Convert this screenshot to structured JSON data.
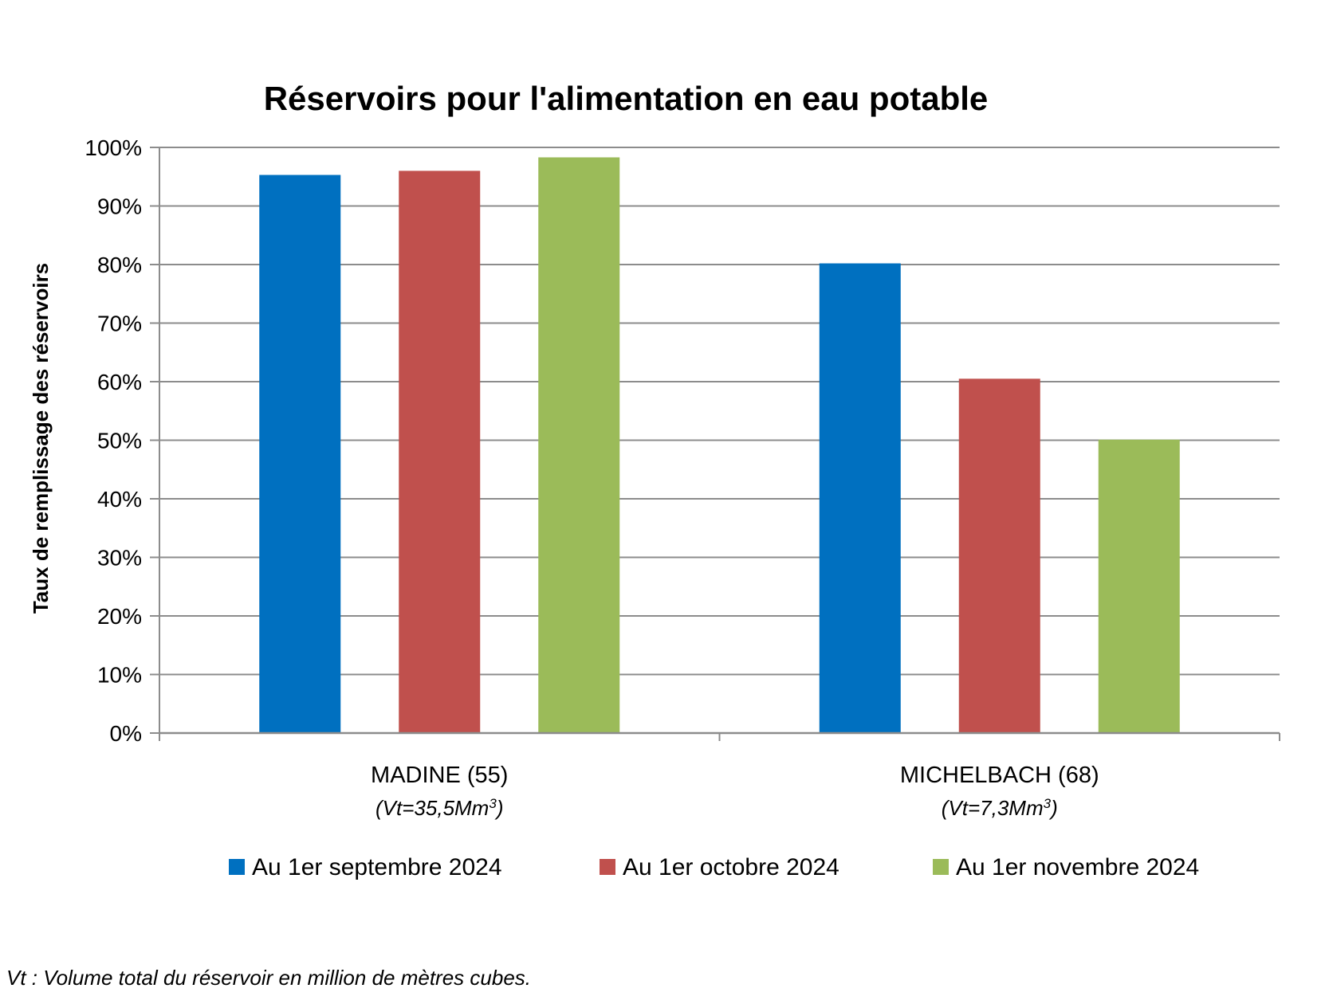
{
  "chart_data": {
    "type": "bar",
    "title": "Réservoirs pour l'alimentation en eau potable",
    "ylabel": "Taux de remplissage des réservoirs",
    "xlabel": "",
    "ylim": [
      0,
      100
    ],
    "yticks": [
      "0%",
      "10%",
      "20%",
      "30%",
      "40%",
      "50%",
      "60%",
      "70%",
      "80%",
      "90%",
      "100%"
    ],
    "categories": [
      {
        "name": "MADINE (55)",
        "sub_prefix": "(Vt=35,5Mm",
        "sub_sup": "3",
        "sub_suffix": ")"
      },
      {
        "name": "MICHELBACH (68)",
        "sub_prefix": "(Vt=7,3Mm",
        "sub_sup": "3",
        "sub_suffix": ")"
      }
    ],
    "series": [
      {
        "name": "Au 1er septembre 2024",
        "color": "#0070C0",
        "values": [
          95.3,
          80.2
        ]
      },
      {
        "name": "Au 1er octobre 2024",
        "color": "#C0504D",
        "values": [
          96.0,
          60.5
        ]
      },
      {
        "name": "Au 1er novembre 2024",
        "color": "#9BBB59",
        "values": [
          98.3,
          50.1
        ]
      }
    ],
    "grid": true,
    "legend_position": "bottom"
  },
  "footnote": "Vt : Volume total du réservoir en million de mètres cubes."
}
